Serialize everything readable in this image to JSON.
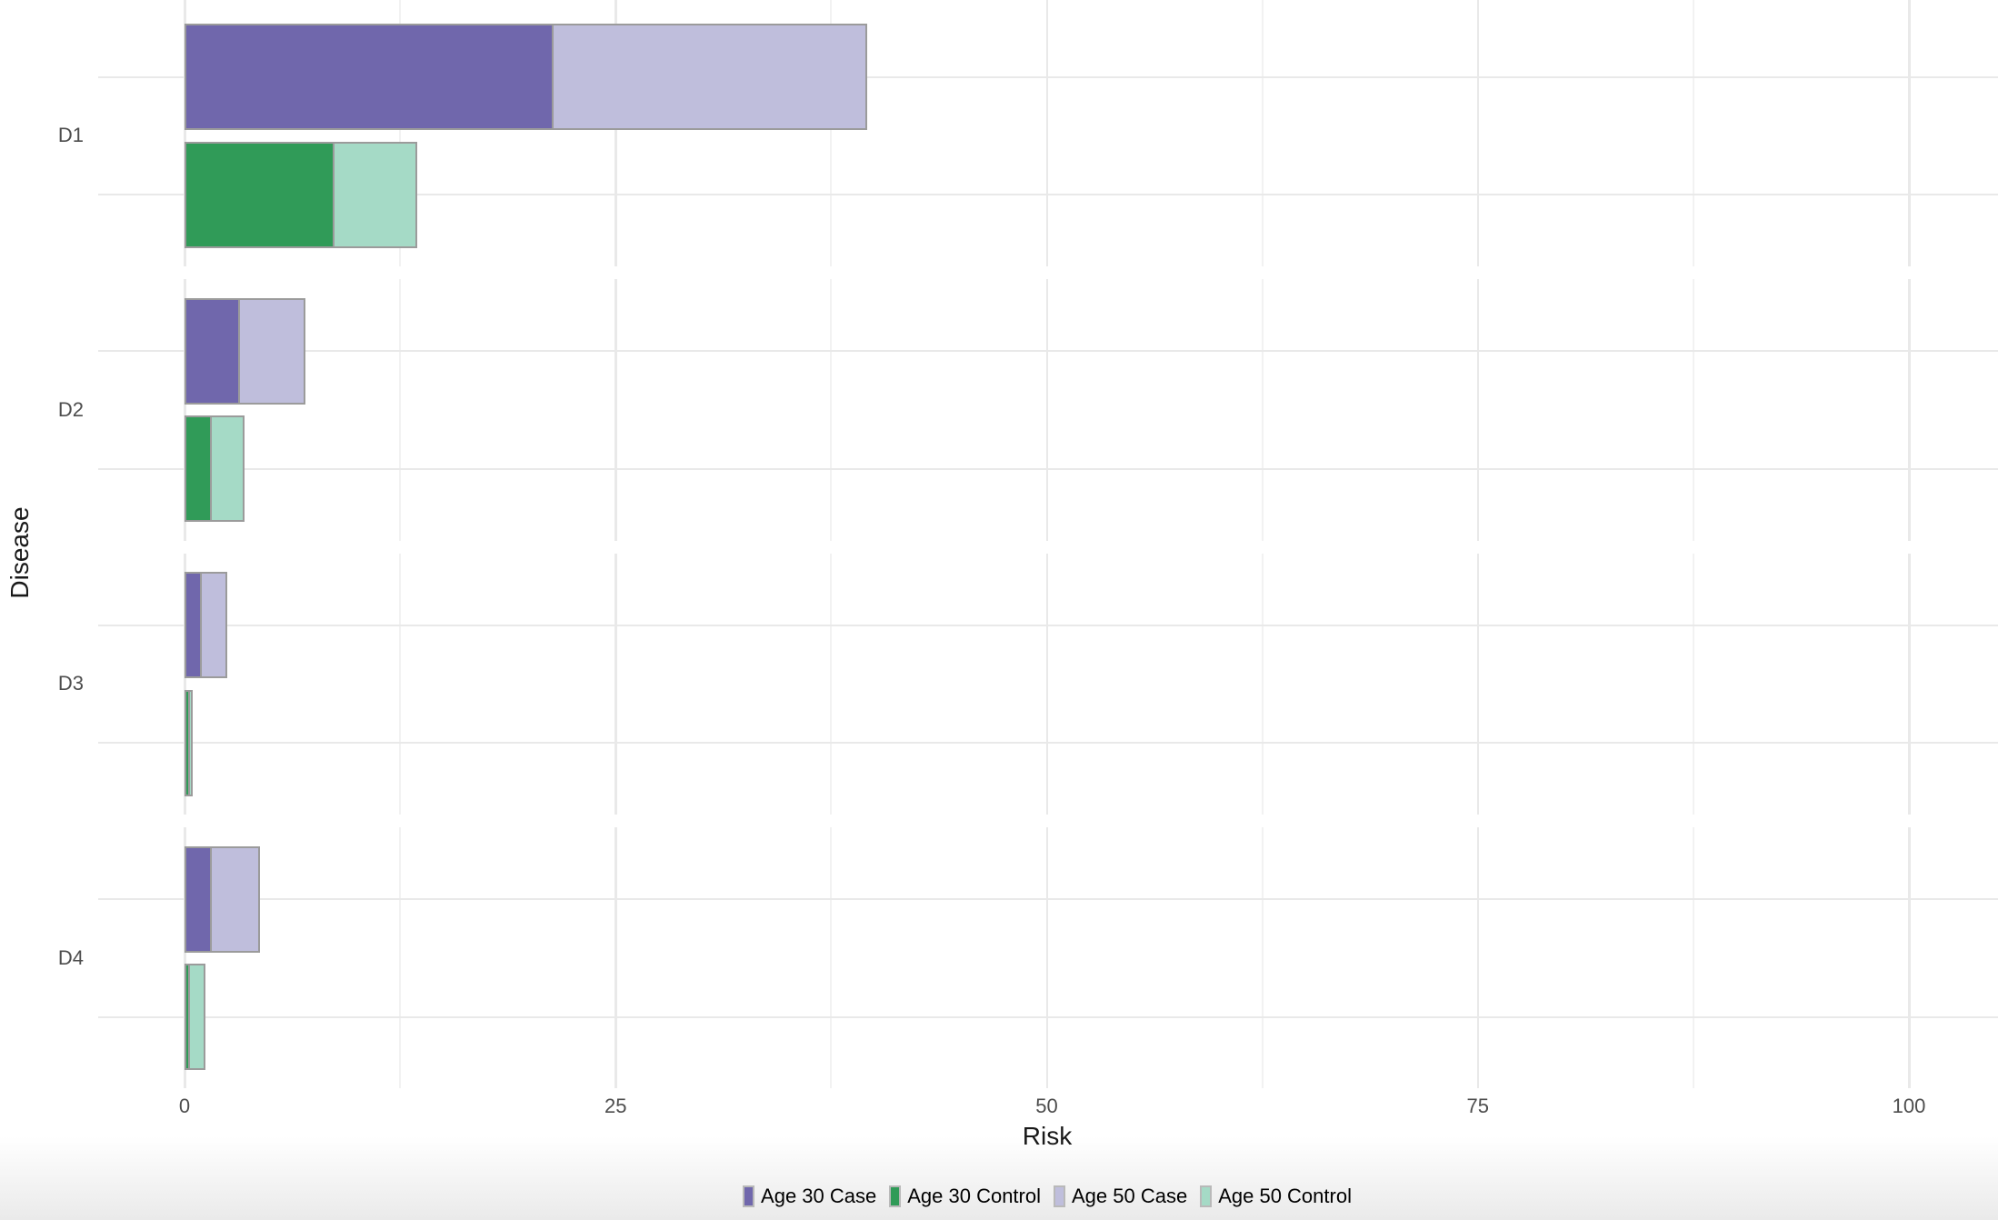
{
  "chart_data": {
    "type": "bar",
    "orientation": "horizontal",
    "title": "",
    "xlabel": "Risk",
    "ylabel": "Disease",
    "xlim": [
      0,
      100
    ],
    "xticks": [
      0,
      25,
      50,
      75,
      100
    ],
    "grid": true,
    "legend_position": "bottom",
    "categories": [
      "D1",
      "D2",
      "D3",
      "D4"
    ],
    "bars": [
      {
        "name": "Case",
        "segments": [
          {
            "series": "Age 30 Case",
            "values": [
              21.4,
              3.2,
              1.0,
              1.6
            ]
          },
          {
            "series": "Age 50 Case",
            "values": [
              18.2,
              3.8,
              1.5,
              2.8
            ]
          }
        ]
      },
      {
        "name": "Control",
        "segments": [
          {
            "series": "Age 30 Control",
            "values": [
              8.7,
              1.6,
              0.3,
              0.3
            ]
          },
          {
            "series": "Age 50 Control",
            "values": [
              4.8,
              1.9,
              0.2,
              0.9
            ]
          }
        ]
      }
    ],
    "legend": [
      {
        "label": "Age 30 Case",
        "color": "#7067AC"
      },
      {
        "label": "Age 30 Control",
        "color": "#309B58"
      },
      {
        "label": "Age 50 Case",
        "color": "#BFBEDC"
      },
      {
        "label": "Age 50 Control",
        "color": "#A5DAC6"
      }
    ]
  },
  "colors": {
    "bar_border": "#9B9B9B",
    "grid_major": "#E9E9E9",
    "grid_minor": "#F2F2F2",
    "tick_text": "#4D4D4D",
    "title_text": "#191919"
  }
}
